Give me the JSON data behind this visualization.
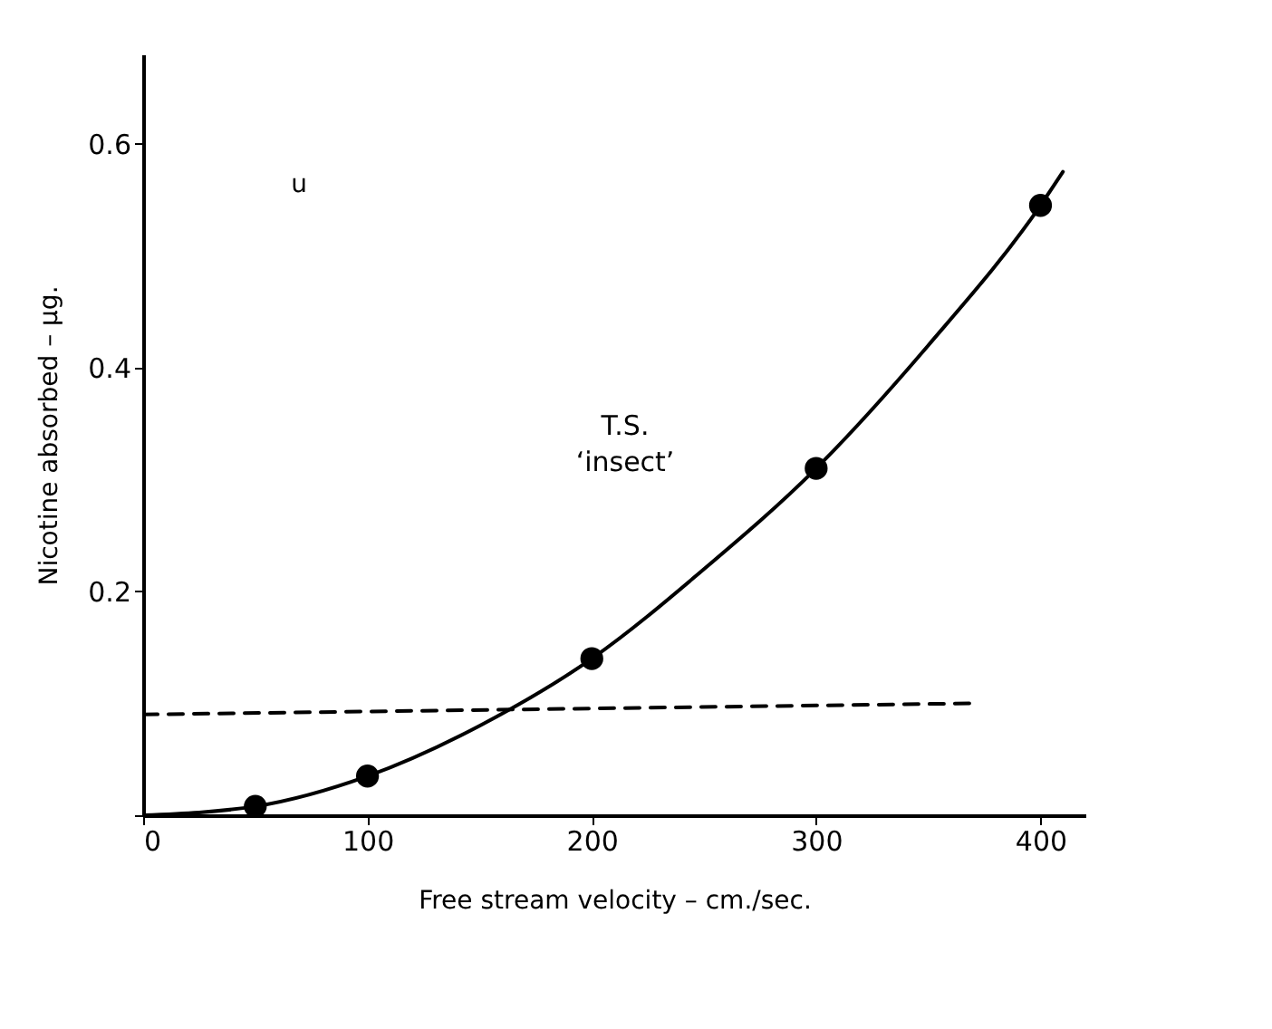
{
  "chart_data": {
    "type": "line",
    "xlabel": "Free stream velocity – cm./sec.",
    "ylabel": "Nicotine absorbed – µg.",
    "xlim": [
      0,
      420
    ],
    "ylim": [
      0,
      0.68
    ],
    "xticks": [
      0,
      100,
      200,
      300,
      400
    ],
    "yticks": [
      {
        "value": 0,
        "label": null
      },
      0.2,
      0.4,
      0.6
    ],
    "grid": false,
    "series": [
      {
        "color": "#000000",
        "line_style": "solid",
        "x": [
          0,
          50,
          100,
          150,
          200,
          250,
          300,
          350,
          400,
          410
        ],
        "values": [
          0,
          0.008,
          0.035,
          0.08,
          0.14,
          0.22,
          0.31,
          0.42,
          0.545,
          0.575
        ]
      },
      {
        "type": "line",
        "color": "#000000",
        "line_style": "dashed",
        "x": [
          0,
          370
        ],
        "values": [
          0.09,
          0.1
        ]
      },
      {
        "type": "scatter",
        "color": "#000000",
        "marker": "circle",
        "x": [
          50,
          100,
          200,
          300,
          400
        ],
        "values": [
          0.008,
          0.035,
          0.14,
          0.31,
          0.545
        ]
      }
    ],
    "annotations": [
      "u",
      "T.S.",
      "‘insect’"
    ]
  }
}
